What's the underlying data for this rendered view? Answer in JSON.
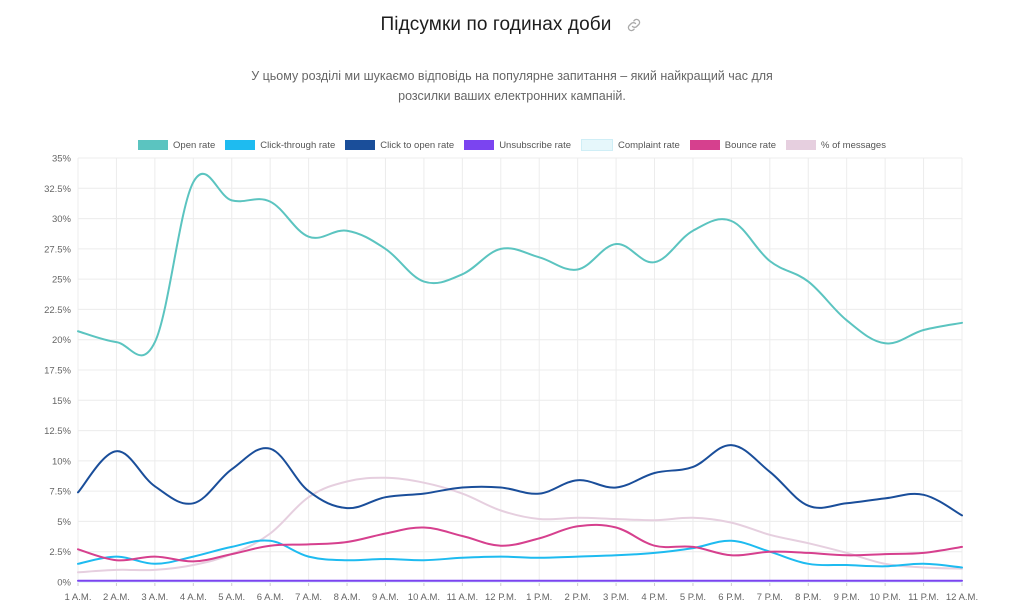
{
  "header": {
    "title": "Підсумки по годинах доби",
    "subtitle_line1": "У цьому розділі ми шукаємо відповідь на популярне запитання – який найкращий час для",
    "subtitle_line2": "розсилки ваших електронних кампаній."
  },
  "icons": {
    "link": "link-icon"
  },
  "chart_data": {
    "type": "line",
    "categories": [
      "1 A.M.",
      "2 A.M.",
      "3 A.M.",
      "4 A.M.",
      "5 A.M.",
      "6 A.M.",
      "7 A.M.",
      "8 A.M.",
      "9 A.M.",
      "10 A.M.",
      "11 A.M.",
      "12 P.M.",
      "1 P.M.",
      "2 P.M.",
      "3 P.M.",
      "4 P.M.",
      "5 P.M.",
      "6 P.M.",
      "7 P.M.",
      "8 P.M.",
      "9 P.M.",
      "10 P.M.",
      "11 P.M.",
      "12 A.M."
    ],
    "ylim": [
      0,
      35
    ],
    "yticks": [
      "0%",
      "2.5%",
      "5%",
      "7.5%",
      "10%",
      "12.5%",
      "15%",
      "17.5%",
      "20%",
      "22.5%",
      "25%",
      "27.5%",
      "30%",
      "32.5%",
      "35%"
    ],
    "grid": true,
    "legend_position": "top",
    "series": [
      {
        "name": "Open rate",
        "color": "#5bc4c0",
        "values": [
          20.7,
          19.8,
          19.8,
          33.0,
          31.5,
          31.4,
          28.5,
          29.0,
          27.5,
          24.8,
          25.4,
          27.5,
          26.8,
          25.8,
          27.9,
          26.4,
          29.0,
          29.8,
          26.5,
          24.8,
          21.6,
          19.7,
          20.8,
          21.4
        ]
      },
      {
        "name": "Click-through rate",
        "color": "#1ebbf0",
        "values": [
          1.5,
          2.1,
          1.5,
          2.1,
          2.9,
          3.4,
          2.1,
          1.8,
          1.9,
          1.8,
          2.0,
          2.1,
          2.0,
          2.1,
          2.2,
          2.4,
          2.8,
          3.4,
          2.5,
          1.5,
          1.4,
          1.3,
          1.5,
          1.2
        ]
      },
      {
        "name": "Click to open rate",
        "color": "#1a4e9a",
        "values": [
          7.4,
          10.8,
          7.9,
          6.5,
          9.3,
          11.0,
          7.5,
          6.1,
          7.0,
          7.3,
          7.8,
          7.8,
          7.3,
          8.4,
          7.8,
          9.0,
          9.5,
          11.3,
          9.1,
          6.3,
          6.5,
          6.9,
          7.2,
          5.5
        ]
      },
      {
        "name": "Unsubscribe rate",
        "color": "#7b44f0",
        "values": [
          0.1,
          0.1,
          0.1,
          0.1,
          0.1,
          0.1,
          0.1,
          0.1,
          0.1,
          0.1,
          0.1,
          0.1,
          0.1,
          0.1,
          0.1,
          0.1,
          0.1,
          0.1,
          0.1,
          0.1,
          0.1,
          0.1,
          0.1,
          0.1
        ]
      },
      {
        "name": "Complaint rate",
        "color": "#e6f7fb",
        "values": [
          0.0,
          0.0,
          0.0,
          0.0,
          0.0,
          0.0,
          0.0,
          0.0,
          0.0,
          0.0,
          0.0,
          0.0,
          0.0,
          0.0,
          0.0,
          0.0,
          0.0,
          0.0,
          0.0,
          0.0,
          0.0,
          0.0,
          0.0,
          0.0
        ]
      },
      {
        "name": "Bounce rate",
        "color": "#d6408e",
        "values": [
          2.7,
          1.8,
          2.1,
          1.7,
          2.3,
          3.0,
          3.1,
          3.3,
          4.0,
          4.5,
          3.8,
          3.0,
          3.6,
          4.6,
          4.5,
          3.0,
          2.9,
          2.2,
          2.5,
          2.4,
          2.2,
          2.3,
          2.4,
          2.9
        ]
      },
      {
        "name": "% of messages",
        "color": "#e6cfdf",
        "values": [
          0.8,
          1.0,
          1.0,
          1.4,
          2.3,
          4.0,
          7.0,
          8.3,
          8.6,
          8.2,
          7.3,
          5.9,
          5.2,
          5.3,
          5.2,
          5.1,
          5.3,
          4.9,
          3.9,
          3.2,
          2.4,
          1.5,
          1.2,
          1.1
        ]
      }
    ]
  }
}
